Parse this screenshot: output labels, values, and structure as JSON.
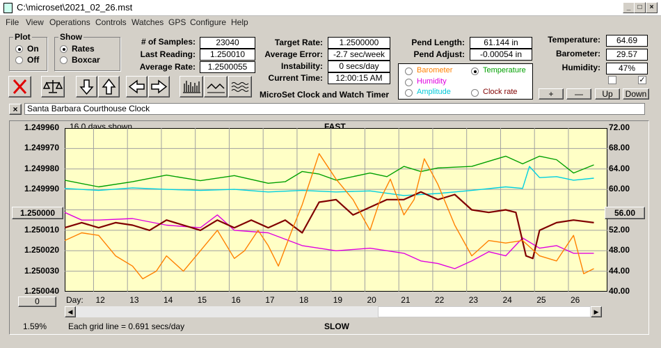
{
  "window": {
    "title": "C:\\microset\\2021_02_26.mst"
  },
  "menu": [
    "File",
    "View",
    "Operations",
    "Controls",
    "Watches",
    "GPS",
    "Configure",
    "Help"
  ],
  "plot_group": {
    "title": "Plot",
    "on": "On",
    "off": "Off",
    "selected": "On"
  },
  "show_group": {
    "title": "Show",
    "rates": "Rates",
    "boxcar": "Boxcar",
    "selected": "Rates"
  },
  "stats": {
    "samples_label": "# of Samples:",
    "samples": "23040",
    "last_label": "Last Reading:",
    "last": "1.250010",
    "avg_rate_label": "Average Rate:",
    "avg_rate": "1.2500055",
    "target_label": "Target Rate:",
    "target": "1.2500000",
    "avg_err_label": "Average Error:",
    "avg_err": "-2.7 sec/week",
    "instab_label": "Instability:",
    "instab": "0 secs/day",
    "time_label": "Current Time:",
    "time": "12:00:15 AM",
    "pend_len_label": "Pend Length:",
    "pend_len": "61.144 in",
    "pend_adj_label": "Pend Adjust:",
    "pend_adj": "-0.00054 in",
    "temp_label": "Temperature:",
    "temp": "64.69",
    "baro_label": "Barometer:",
    "baro": "29.57",
    "hum_label": "Humidity:",
    "hum": "47%"
  },
  "product_label": "MicroSet Clock and Watch Timer",
  "sensor_radios": {
    "barometer": "Barometer",
    "temperature": "Temperature",
    "humidity": "Humidity",
    "amplitude": "Amplitude",
    "clock_rate": "Clock rate",
    "selected": "Temperature"
  },
  "colors": {
    "barometer": "#ff8000",
    "temperature": "#00a000",
    "humidity": "#e000e0",
    "amplitude": "#00d0e0",
    "clock_rate": "#800000",
    "plot_bg": "#ffffc6"
  },
  "small_buttons": {
    "plus": "+",
    "minus": "—",
    "up": "Up",
    "down": "Down"
  },
  "checkboxes": [
    {
      "checked": false
    },
    {
      "checked": true
    }
  ],
  "clock_name": "Santa Barbara Courthouse Clock",
  "toolbar_icons": [
    "close-x-icon",
    "balance-scale-icon",
    "arrow-down-icon",
    "arrow-up-icon",
    "arrow-left-icon",
    "arrow-right-icon",
    "bar-chart-icon",
    "waveform-icon",
    "wavy-lines-icon"
  ],
  "chart": {
    "days_shown": "16.0 days shown",
    "top_label": "FAST",
    "bottom_label": "SLOW",
    "day_label": "Day:",
    "grid_note": "Each grid line = 0.691 secs/day",
    "percent": "1.59%",
    "left_button": "1.250000",
    "right_button": "56.00",
    "zero_button": "0"
  },
  "chart_data": {
    "type": "line",
    "x_ticks": [
      "12",
      "13",
      "14",
      "15",
      "16",
      "17",
      "18",
      "19",
      "20",
      "21",
      "22",
      "23",
      "24",
      "25",
      "26"
    ],
    "y_left_ticks": [
      "1.249960",
      "1.249970",
      "1.249980",
      "1.249990",
      "1.250000",
      "1.250010",
      "1.250020",
      "1.250030",
      "1.250040"
    ],
    "y_right_ticks": [
      "72.00",
      "68.00",
      "64.00",
      "60.00",
      "56.00",
      "52.00",
      "48.00",
      "44.00",
      "40.00"
    ],
    "ylim_left": [
      1.24996,
      1.25004
    ],
    "ylim_right": [
      40,
      72
    ],
    "grid": true,
    "series": [
      {
        "name": "Temperature",
        "color": "#00a000",
        "x": [
          11,
          12,
          13,
          14,
          15,
          16,
          17,
          17.5,
          18,
          18.5,
          19,
          20,
          20.5,
          21,
          21.5,
          22,
          23,
          24,
          24.5,
          25,
          25.5,
          26,
          26.6
        ],
        "y": [
          61.8,
          60.5,
          61.5,
          62.8,
          61.7,
          62.7,
          61.2,
          61.5,
          63.5,
          63,
          61.8,
          63.2,
          62.5,
          64.5,
          63.5,
          64.2,
          64.5,
          66.5,
          65,
          66.5,
          65.8,
          63.2,
          64.8
        ]
      },
      {
        "name": "Amplitude",
        "color": "#00d0e0",
        "x": [
          11,
          12,
          13,
          14,
          15,
          16,
          17,
          18,
          19,
          20,
          21,
          22,
          23,
          24,
          24.5,
          24.7,
          25,
          25.5,
          26,
          26.6
        ],
        "y": [
          60.2,
          59.8,
          60.3,
          60,
          59.8,
          60,
          59.5,
          59.8,
          59.5,
          59.7,
          58.8,
          59.2,
          59.8,
          60.5,
          60.2,
          64.5,
          62.3,
          62.5,
          61.8,
          62.2
        ]
      },
      {
        "name": "Humidity",
        "color": "#e000e0",
        "x": [
          11,
          11.5,
          12,
          13,
          14,
          15,
          15.5,
          16,
          17,
          18,
          19,
          20,
          21,
          21.5,
          22,
          22.5,
          23,
          23.5,
          24,
          24.5,
          25,
          25.5,
          26,
          26.6
        ],
        "y": [
          55.5,
          54,
          54,
          54.3,
          53,
          52.5,
          55,
          52,
          51.5,
          49,
          48,
          48.5,
          47.5,
          46,
          45.5,
          44.5,
          46,
          47.8,
          47,
          50.5,
          48.5,
          49,
          47.5,
          47.5
        ]
      },
      {
        "name": "Clock rate",
        "color": "#800000",
        "x": [
          11,
          11.5,
          12,
          12.5,
          13,
          13.5,
          14,
          14.5,
          15,
          15.5,
          16,
          16.5,
          17,
          17.5,
          18,
          18.5,
          19,
          19.5,
          20,
          20.5,
          21,
          21.5,
          22,
          22.5,
          23,
          23.5,
          24,
          24.3,
          24.6,
          24.8,
          25,
          25.5,
          26,
          26.6
        ],
        "y": [
          52.5,
          53.5,
          52.5,
          53.5,
          53,
          52,
          54,
          53,
          52,
          54,
          52.5,
          54,
          52.5,
          54,
          51.5,
          57.5,
          58,
          55,
          56.5,
          58,
          58,
          59.5,
          58,
          59,
          56,
          55.5,
          56,
          55.5,
          47,
          46.5,
          52,
          53.5,
          54,
          53.5
        ]
      },
      {
        "name": "Barometer",
        "color": "#ff8000",
        "x": [
          11,
          11.5,
          12,
          12.5,
          13,
          13.3,
          13.7,
          14,
          14.5,
          15,
          15.5,
          16,
          16.3,
          16.7,
          17,
          17.3,
          17.7,
          18,
          18.5,
          19,
          19.5,
          20,
          20.3,
          20.6,
          21,
          21.3,
          21.6,
          22,
          22.5,
          23,
          23.5,
          24,
          24.5,
          25,
          25.5,
          26,
          26.3,
          26.6
        ],
        "y": [
          50,
          51.5,
          51,
          47,
          45,
          42.5,
          44,
          47,
          44,
          48,
          52,
          46.5,
          48,
          52,
          49,
          45,
          52,
          57,
          67,
          62,
          58,
          52,
          58,
          62,
          55,
          58,
          66,
          61,
          53,
          47,
          50,
          49.5,
          50,
          47,
          46,
          51,
          43.5,
          44.5
        ]
      }
    ]
  }
}
